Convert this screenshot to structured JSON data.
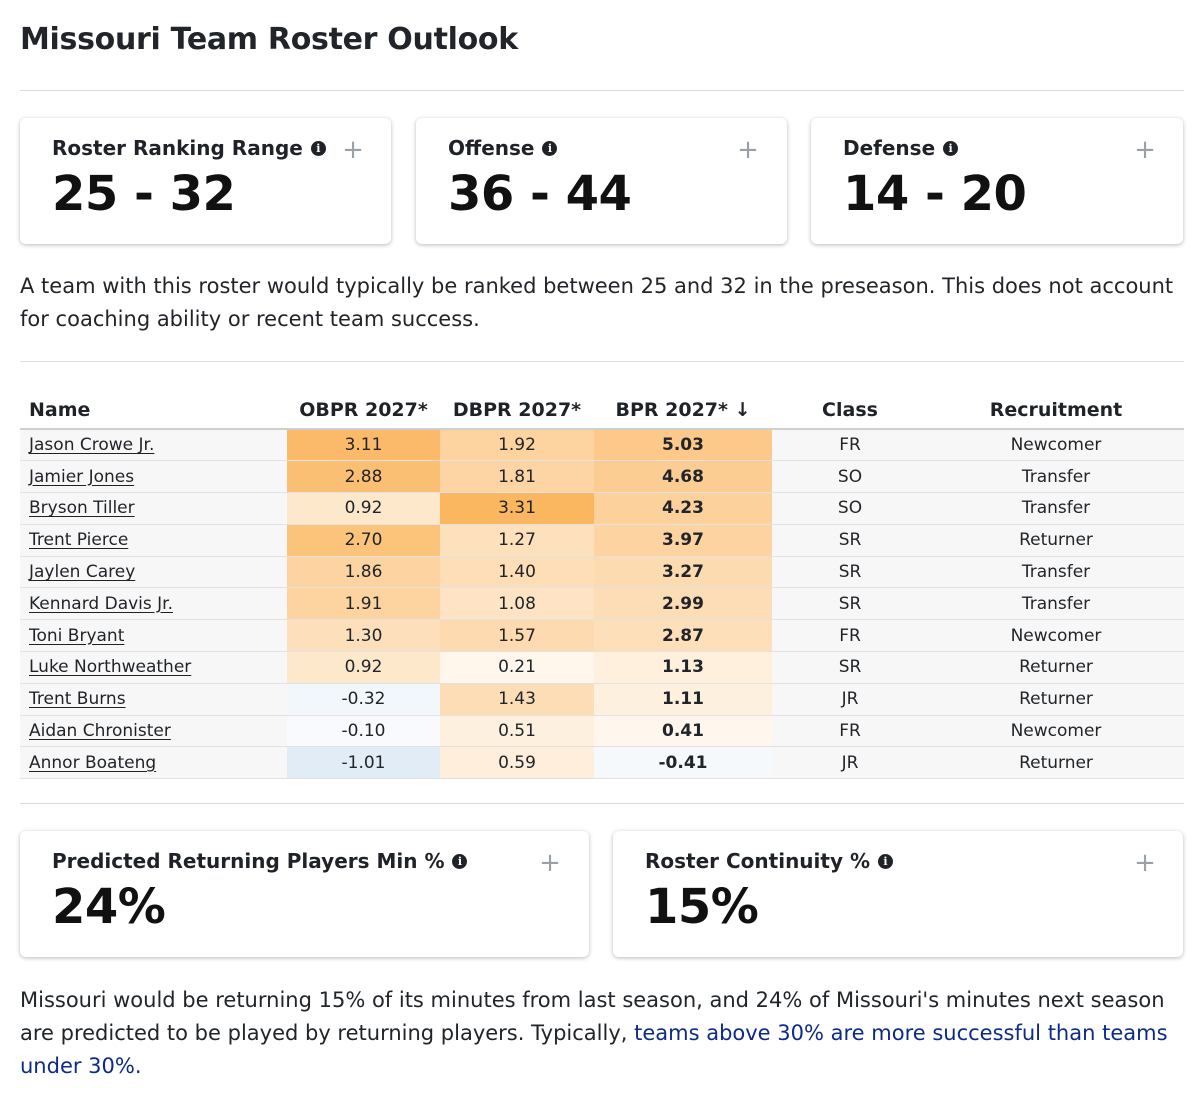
{
  "page": {
    "title": "Missouri Team Roster Outlook"
  },
  "cards_top": [
    {
      "label": "Roster Ranking Range",
      "value": "25 - 32"
    },
    {
      "label": "Offense",
      "value": "36 - 44"
    },
    {
      "label": "Defense",
      "value": "14 - 20"
    }
  ],
  "ranking_description": "A team with this roster would typically be ranked between 25 and 32 in the preseason. This does not account for coaching ability or recent team success.",
  "table": {
    "headers": [
      "Name",
      "OBPR 2027*",
      "DBPR 2027*",
      "BPR 2027* ↓",
      "Class",
      "Recruitment"
    ],
    "sort_column": "BPR 2027*",
    "sort_direction": "descending",
    "rows": [
      {
        "name": "Jason Crowe Jr.",
        "obpr": "3.11",
        "dbpr": "1.92",
        "bpr": "5.03",
        "class": "FR",
        "recruitment": "Newcomer"
      },
      {
        "name": "Jamier Jones",
        "obpr": "2.88",
        "dbpr": "1.81",
        "bpr": "4.68",
        "class": "SO",
        "recruitment": "Transfer"
      },
      {
        "name": "Bryson Tiller",
        "obpr": "0.92",
        "dbpr": "3.31",
        "bpr": "4.23",
        "class": "SO",
        "recruitment": "Transfer"
      },
      {
        "name": "Trent Pierce",
        "obpr": "2.70",
        "dbpr": "1.27",
        "bpr": "3.97",
        "class": "SR",
        "recruitment": "Returner"
      },
      {
        "name": "Jaylen Carey",
        "obpr": "1.86",
        "dbpr": "1.40",
        "bpr": "3.27",
        "class": "SR",
        "recruitment": "Transfer"
      },
      {
        "name": "Kennard Davis Jr.",
        "obpr": "1.91",
        "dbpr": "1.08",
        "bpr": "2.99",
        "class": "SR",
        "recruitment": "Transfer"
      },
      {
        "name": "Toni Bryant",
        "obpr": "1.30",
        "dbpr": "1.57",
        "bpr": "2.87",
        "class": "FR",
        "recruitment": "Newcomer"
      },
      {
        "name": "Luke Northweather",
        "obpr": "0.92",
        "dbpr": "0.21",
        "bpr": "1.13",
        "class": "SR",
        "recruitment": "Returner"
      },
      {
        "name": "Trent Burns",
        "obpr": "-0.32",
        "dbpr": "1.43",
        "bpr": "1.11",
        "class": "JR",
        "recruitment": "Returner"
      },
      {
        "name": "Aidan Chronister",
        "obpr": "-0.10",
        "dbpr": "0.51",
        "bpr": "0.41",
        "class": "FR",
        "recruitment": "Newcomer"
      },
      {
        "name": "Annor Boateng",
        "obpr": "-1.01",
        "dbpr": "0.59",
        "bpr": "-0.41",
        "class": "JR",
        "recruitment": "Returner"
      }
    ]
  },
  "cards_bottom": [
    {
      "label": "Predicted Returning Players Min %",
      "value": "24%"
    },
    {
      "label": "Roster Continuity %",
      "value": "15%"
    }
  ],
  "continuity_description": {
    "text": "Missouri would be returning 15% of its minutes from last season, and 24% of Missouri's minutes next season are predicted to be played by returning players. Typically, ",
    "link": "teams above 30% are more successful than teams under 30%."
  },
  "colors": {
    "positive": "#fbb660",
    "negative": "#a9c9e6",
    "card_plus": "#9aa0a6",
    "link": "#0d2a8a"
  }
}
